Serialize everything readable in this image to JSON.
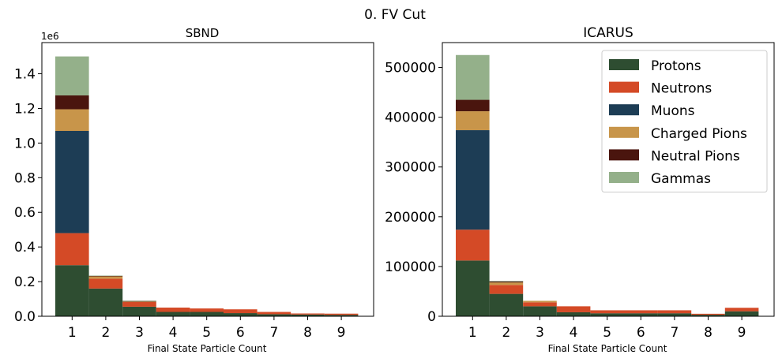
{
  "figure_title": "0. FV Cut",
  "colors": {
    "Protons": "#2e4d31",
    "Neutrons": "#d44a26",
    "Muons": "#1d3d55",
    "Charged Pions": "#c8954a",
    "Neutral Pions": "#4a150e",
    "Gammas": "#94b08a"
  },
  "chart_data": [
    {
      "type": "bar",
      "stacked": true,
      "title": "SBND",
      "xlabel": "Final State Particle Count",
      "ylabel": "",
      "y_offset_label": "1e6",
      "categories": [
        "1",
        "2",
        "3",
        "4",
        "5",
        "6",
        "7",
        "8",
        "9"
      ],
      "ylim": [
        0,
        1580000
      ],
      "yticks": [
        0,
        200000,
        400000,
        600000,
        800000,
        1000000,
        1200000,
        1400000
      ],
      "ytick_labels": [
        "0.0",
        "0.2",
        "0.4",
        "0.6",
        "0.8",
        "1.0",
        "1.2",
        "1.4"
      ],
      "series": [
        {
          "name": "Protons",
          "values": [
            295000,
            160000,
            55000,
            25000,
            25000,
            18000,
            12000,
            10000,
            8000
          ]
        },
        {
          "name": "Neutrons",
          "values": [
            185000,
            57000,
            27000,
            25000,
            20000,
            22000,
            13000,
            6000,
            7000
          ]
        },
        {
          "name": "Muons",
          "values": [
            590000,
            0,
            0,
            0,
            0,
            0,
            0,
            0,
            0
          ]
        },
        {
          "name": "Charged Pions",
          "values": [
            125000,
            13000,
            3000,
            0,
            0,
            0,
            0,
            0,
            0
          ]
        },
        {
          "name": "Neutral Pions",
          "values": [
            80000,
            3000,
            3000,
            0,
            0,
            0,
            0,
            0,
            0
          ]
        },
        {
          "name": "Gammas",
          "values": [
            225000,
            2000,
            2000,
            0,
            0,
            0,
            0,
            0,
            0
          ]
        }
      ]
    },
    {
      "type": "bar",
      "stacked": true,
      "title": "ICARUS",
      "xlabel": "Final State Particle Count",
      "ylabel": "",
      "categories": [
        "1",
        "2",
        "3",
        "4",
        "5",
        "6",
        "7",
        "8",
        "9"
      ],
      "ylim": [
        0,
        550000
      ],
      "yticks": [
        0,
        100000,
        200000,
        300000,
        400000,
        500000
      ],
      "ytick_labels": [
        "0",
        "100000",
        "200000",
        "300000",
        "400000",
        "500000"
      ],
      "legend_position": "upper right",
      "series": [
        {
          "name": "Protons",
          "values": [
            112000,
            45000,
            20000,
            8000,
            6000,
            6000,
            6000,
            3000,
            10000
          ]
        },
        {
          "name": "Neutrons",
          "values": [
            62000,
            18000,
            8000,
            12000,
            6000,
            6000,
            6000,
            2000,
            7000
          ]
        },
        {
          "name": "Muons",
          "values": [
            200000,
            0,
            0,
            0,
            0,
            0,
            0,
            0,
            0
          ]
        },
        {
          "name": "Charged Pions",
          "values": [
            38000,
            5000,
            3000,
            0,
            0,
            0,
            0,
            0,
            0
          ]
        },
        {
          "name": "Neutral Pions",
          "values": [
            23000,
            2000,
            0,
            0,
            0,
            0,
            0,
            0,
            0
          ]
        },
        {
          "name": "Gammas",
          "values": [
            90000,
            1000,
            0,
            0,
            0,
            0,
            0,
            0,
            0
          ]
        }
      ]
    }
  ]
}
